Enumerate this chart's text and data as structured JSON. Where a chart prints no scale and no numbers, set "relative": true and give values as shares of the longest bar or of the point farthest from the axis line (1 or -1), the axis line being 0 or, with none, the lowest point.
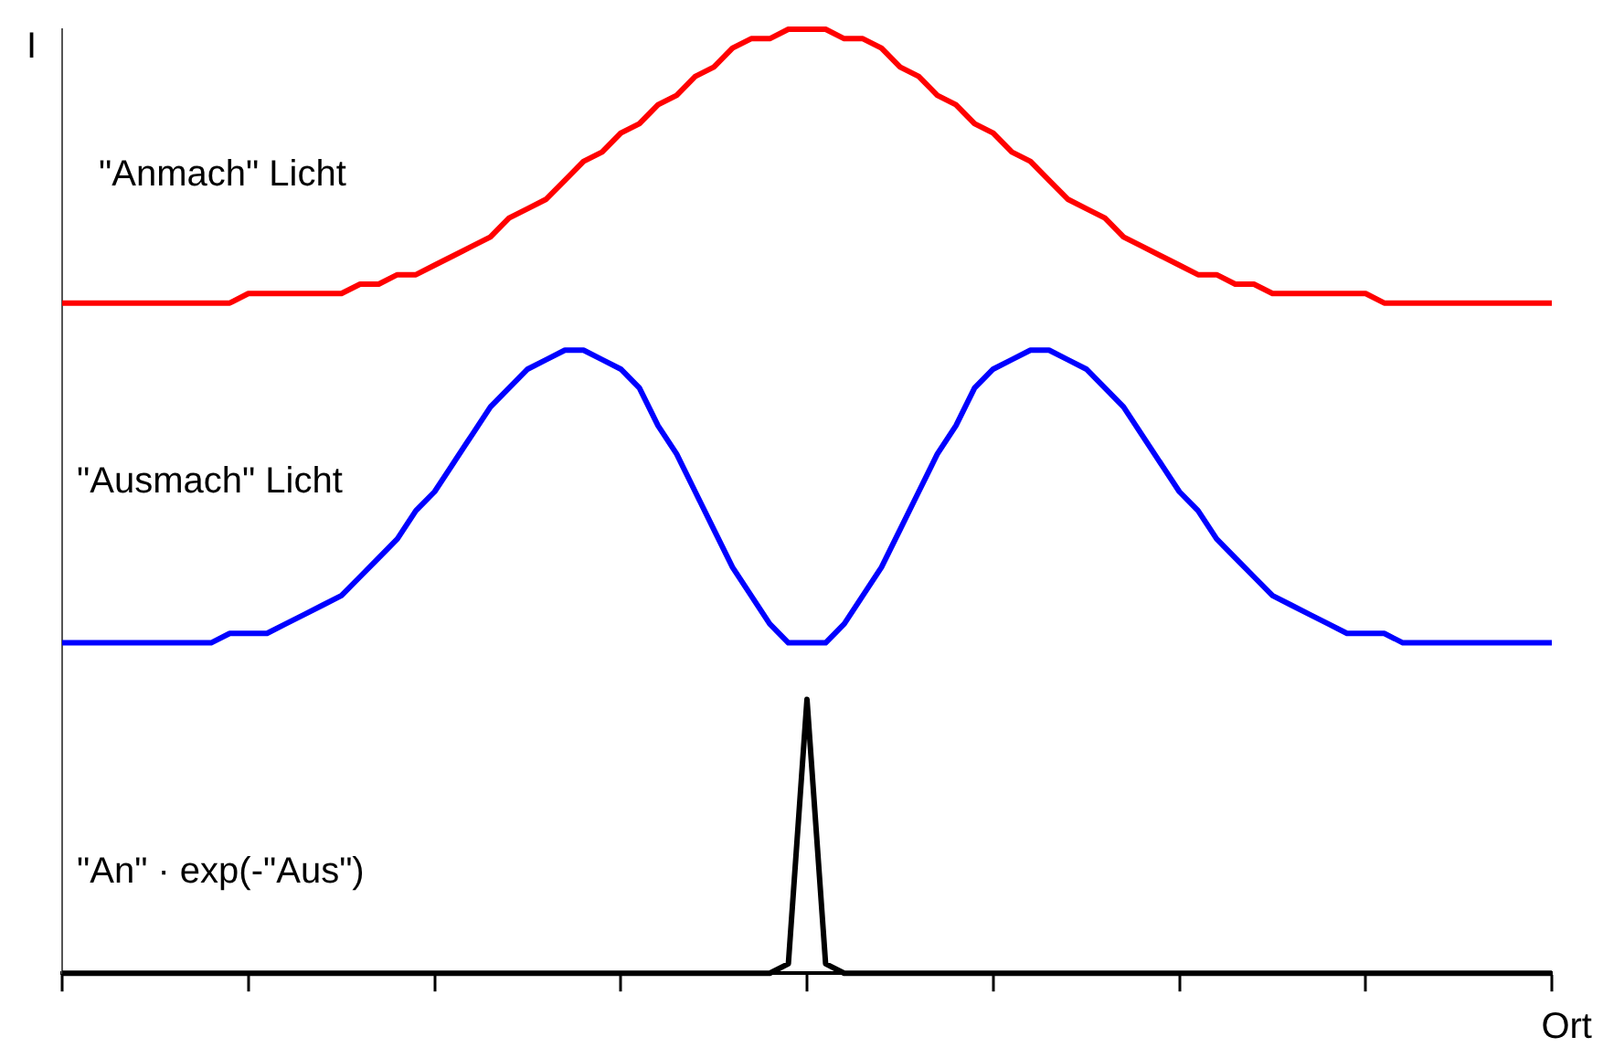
{
  "chart_data": {
    "type": "line",
    "relative": true,
    "xlabel": "Ort",
    "ylabel": "I",
    "legend": false,
    "grid": false,
    "marker": "none",
    "line_style": "solid",
    "categories": [
      null,
      null,
      null,
      null,
      null,
      null,
      null,
      null,
      null,
      null,
      null,
      null,
      null,
      null,
      null,
      null,
      null,
      null,
      null,
      null,
      null,
      null,
      null,
      null,
      null,
      null,
      null,
      null,
      null,
      null,
      null,
      null,
      null,
      null,
      null,
      null,
      null,
      null,
      null,
      null,
      null,
      null,
      null,
      null,
      null,
      null,
      null,
      null,
      null,
      null,
      null,
      null,
      null,
      null,
      null,
      null,
      null,
      null,
      null,
      null,
      null,
      null,
      null,
      null,
      null,
      null,
      null,
      null,
      null,
      null,
      null,
      null,
      null,
      null,
      null,
      null,
      null,
      null,
      null,
      null,
      null
    ],
    "series": [
      {
        "name": "\"Anmach\" Licht",
        "color": "#ff0000",
        "values": [
          0.71,
          0.71,
          0.71,
          0.71,
          0.71,
          0.71,
          0.71,
          0.71,
          0.71,
          0.71,
          0.72,
          0.72,
          0.72,
          0.72,
          0.72,
          0.72,
          0.73,
          0.73,
          0.74,
          0.74,
          0.75,
          0.76,
          0.77,
          0.78,
          0.8,
          0.81,
          0.82,
          0.84,
          0.86,
          0.87,
          0.89,
          0.9,
          0.92,
          0.93,
          0.95,
          0.96,
          0.98,
          0.99,
          0.99,
          1.0,
          1.0,
          1.0,
          0.99,
          0.99,
          0.98,
          0.96,
          0.95,
          0.93,
          0.92,
          0.9,
          0.89,
          0.87,
          0.86,
          0.84,
          0.82,
          0.81,
          0.8,
          0.78,
          0.77,
          0.76,
          0.75,
          0.74,
          0.74,
          0.73,
          0.73,
          0.72,
          0.72,
          0.72,
          0.72,
          0.72,
          0.72,
          0.71,
          0.71,
          0.71,
          0.71,
          0.71,
          0.71,
          0.71,
          0.71,
          0.71,
          0.71
        ]
      },
      {
        "name": "\"Ausmach\" Licht",
        "color": "#0000ff",
        "values": [
          0.35,
          0.35,
          0.35,
          0.35,
          0.35,
          0.35,
          0.35,
          0.35,
          0.35,
          0.36,
          0.36,
          0.36,
          0.37,
          0.38,
          0.39,
          0.4,
          0.42,
          0.44,
          0.46,
          0.49,
          0.51,
          0.54,
          0.57,
          0.6,
          0.62,
          0.64,
          0.65,
          0.66,
          0.66,
          0.65,
          0.64,
          0.62,
          0.58,
          0.55,
          0.51,
          0.47,
          0.43,
          0.4,
          0.37,
          0.35,
          0.35,
          0.35,
          0.37,
          0.4,
          0.43,
          0.47,
          0.51,
          0.55,
          0.58,
          0.62,
          0.64,
          0.65,
          0.66,
          0.66,
          0.65,
          0.64,
          0.62,
          0.6,
          0.57,
          0.54,
          0.51,
          0.49,
          0.46,
          0.44,
          0.42,
          0.4,
          0.39,
          0.38,
          0.37,
          0.36,
          0.36,
          0.36,
          0.35,
          0.35,
          0.35,
          0.35,
          0.35,
          0.35,
          0.35,
          0.35,
          0.35
        ]
      },
      {
        "name": "\"An\" · exp(-\"Aus\")",
        "color": "#000000",
        "values": [
          0,
          0,
          0,
          0,
          0,
          0,
          0,
          0,
          0,
          0,
          0,
          0,
          0,
          0,
          0,
          0,
          0,
          0,
          0,
          0,
          0,
          0,
          0,
          0,
          0,
          0,
          0,
          0,
          0,
          0,
          0,
          0,
          0,
          0,
          0,
          0,
          0,
          0,
          0,
          0.01,
          0.29,
          0.01,
          0,
          0,
          0,
          0,
          0,
          0,
          0,
          0,
          0,
          0,
          0,
          0,
          0,
          0,
          0,
          0,
          0,
          0,
          0,
          0,
          0,
          0,
          0,
          0,
          0,
          0,
          0,
          0,
          0,
          0,
          0,
          0,
          0,
          0,
          0,
          0,
          0,
          0,
          0
        ]
      }
    ]
  }
}
